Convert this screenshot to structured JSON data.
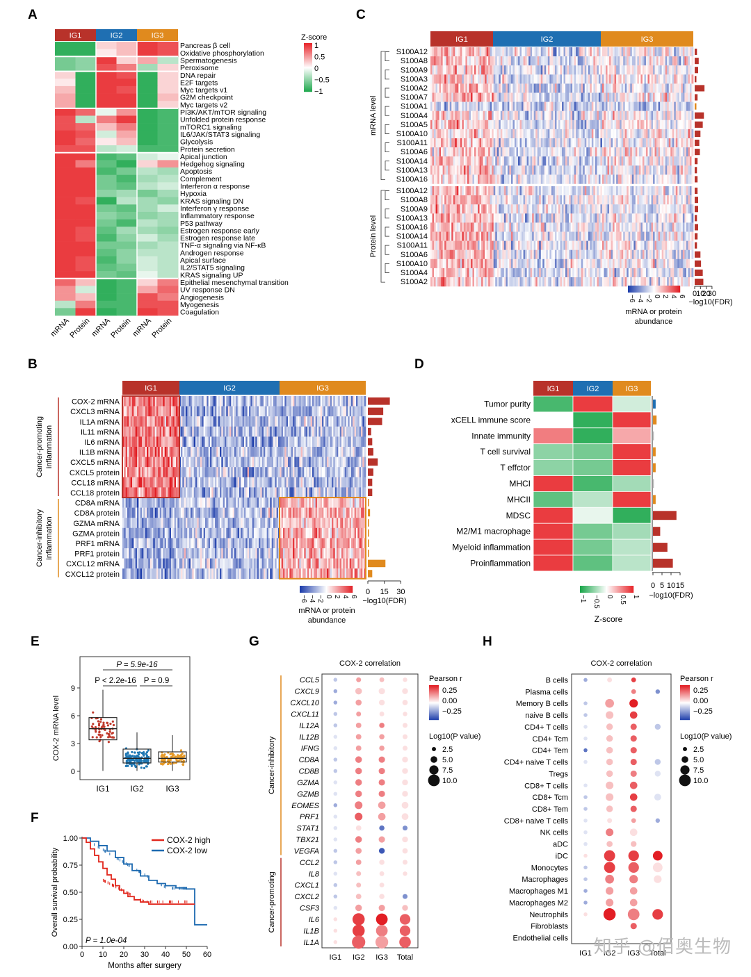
{
  "panels": {
    "a": "A",
    "b": "B",
    "c": "C",
    "d": "D",
    "e": "E",
    "f": "F",
    "g": "G",
    "h": "H"
  },
  "groups": [
    "IG1",
    "IG2",
    "IG3"
  ],
  "colors": {
    "ig1": "#b8322a",
    "ig2": "#1f6fb2",
    "ig3": "#e08a1e",
    "red": "#e8262b",
    "green": "#1aa64a",
    "blue": "#1f4fb4",
    "bar": "#b8322a",
    "cox_high": "#e1261c",
    "cox_low": "#1d6ab0"
  },
  "panelA": {
    "legend_title": "Z-score",
    "legend_ticks": [
      "1",
      "0.5",
      "0",
      "−0.5",
      "−1"
    ],
    "col_labels": [
      "mRNA",
      "Protein",
      "mRNA",
      "Protein",
      "mRNA",
      "Protein"
    ],
    "rows": [
      "Pancreas β cell",
      "Oxidative phosphorylation",
      "Spermatogenesis",
      "Peroxisome",
      "DNA repair",
      "E2F targets",
      "Myc targets v1",
      "G2M checkpoint",
      "Myc targets v2",
      "PI3K/AKT/mTOR signaling",
      "Unfolded protein response",
      "mTORC1 signaling",
      "IL6/JAK/STAT3 signaling",
      "Glycolysis",
      "Protein secretion",
      "Apical junction",
      "Hedgehog signaling",
      "Apoptosis",
      "Complement",
      "Interferon α response",
      "Hypoxia",
      "KRAS signaling DN",
      "Interferon γ response",
      "Inflammatory response",
      "P53 pathway",
      "Estrogen response early",
      "Estrogen response late",
      "TNF-α signaling via NF-κB",
      "Androgen response",
      "Apical surface",
      "IL2/STAT5 signaling",
      "KRAS signaling UP",
      "Epithelial mesenchymal transition",
      "UV response DN",
      "Angiogenesis",
      "Myogenesis",
      "Coagulation"
    ]
  },
  "panelB": {
    "side_labels": [
      "Cancer-promoting inflammation",
      "Cancer-inhibitory inflammation"
    ],
    "rows": [
      "COX-2 mRNA",
      "CXCL3 mRNA",
      "IL1A mRNA",
      "IL11 mRNA",
      "IL6 mRNA",
      "IL1B mRNA",
      "CXCL5 mRNA",
      "CXCL5 protein",
      "CCL18 mRNA",
      "CCL18 protein",
      "CD8A mRNA",
      "CD8A protein",
      "GZMA mRNA",
      "GZMA protein",
      "PRF1 mRNA",
      "PRF1 protein",
      "CXCL12 mRNA",
      "CXCL12 protein"
    ],
    "bar_values": [
      20,
      14,
      13,
      3,
      4,
      5,
      9,
      5,
      4,
      4,
      1,
      2,
      1,
      1,
      1,
      1,
      16,
      4
    ],
    "axis_ticks": [
      "0",
      "15",
      "30"
    ],
    "axis_label": "−log10(FDR)",
    "legend_ticks": [
      "−6",
      "−4",
      "−2",
      "0",
      "2",
      "4",
      "6"
    ],
    "legend_title_1": "mRNA or protein",
    "legend_title_2": "abundance"
  },
  "panelC": {
    "side_labels": [
      "mRNA level",
      "Protein level"
    ],
    "rows_mrna": [
      "S100A12",
      "S100A8",
      "S100A9",
      "S100A3",
      "S100A2",
      "S100A7",
      "S100A1",
      "S100A4",
      "S100A5",
      "S100A10",
      "S100A11",
      "S100A6",
      "S100A14",
      "S100A13",
      "S100A16"
    ],
    "rows_protein": [
      "S100A12",
      "S100A8",
      "S100A9",
      "S100A13",
      "S100A16",
      "S100A14",
      "S100A11",
      "S100A6",
      "S100A10",
      "S100A4",
      "S100A2"
    ],
    "bars_mrna": [
      4,
      7,
      6,
      3,
      17,
      5,
      3,
      16,
      14,
      10,
      8,
      9,
      5,
      4,
      5
    ],
    "bars_protein": [
      5,
      6,
      6,
      4,
      6,
      5,
      4,
      10,
      11,
      14,
      15
    ],
    "axis_ticks": [
      "0",
      "10",
      "20",
      "30"
    ],
    "axis_label": "−log10(FDR)",
    "legend_ticks": [
      "−6",
      "−4",
      "−2",
      "0",
      "2",
      "4",
      "6"
    ],
    "legend_title_1": "mRNA or protein",
    "legend_title_2": "abundance"
  },
  "panelD": {
    "rows": [
      "Tumor purity",
      "xCELL immune score",
      "Innate immunity",
      "T cell survival",
      "T effctor",
      "MHCI",
      "MHCII",
      "MDSC",
      "M2/M1 macrophage",
      "Myeloid inflammation",
      "Proinflammation"
    ],
    "z": [
      [
        -0.8,
        0.9,
        -0.2
      ],
      [
        0.0,
        -0.9,
        0.9
      ],
      [
        0.6,
        -0.9,
        0.4
      ],
      [
        -0.5,
        -0.6,
        0.9
      ],
      [
        -0.5,
        -0.6,
        0.9
      ],
      [
        0.9,
        -0.8,
        -0.4
      ],
      [
        -0.7,
        -0.3,
        0.9
      ],
      [
        0.9,
        -0.1,
        -0.9
      ],
      [
        0.9,
        -0.6,
        -0.4
      ],
      [
        0.9,
        -0.6,
        -0.3
      ],
      [
        0.9,
        -0.7,
        -0.3
      ]
    ],
    "bar_values": [
      1.5,
      2,
      0.5,
      1.5,
      1.5,
      0.5,
      1.5,
      13,
      4,
      8,
      11
    ],
    "bar_colors": [
      "#1f6fb2",
      "#e08a1e",
      "#bbbbbb",
      "#e08a1e",
      "#e08a1e",
      "#bbbbbb",
      "#e08a1e",
      "#b8322a",
      "#b8322a",
      "#b8322a",
      "#b8322a"
    ],
    "axis_ticks": [
      "0",
      "5",
      "10",
      "15"
    ],
    "axis_label": "−log10(FDR)",
    "legend_ticks": [
      "−1",
      "−0.5",
      "0",
      "0.5",
      "1"
    ],
    "legend_title": "Z-score"
  },
  "panelE": {
    "ylabel": "COX-2 mRNA level",
    "yticks": [
      "0",
      "3",
      "6",
      "9"
    ],
    "groups": [
      "IG1",
      "IG2",
      "IG3"
    ],
    "p_top": "P = 5.9e-16",
    "p_left": "P < 2.2e-16",
    "p_right": "P = 0.9",
    "medians": [
      4.6,
      1.4,
      1.4
    ],
    "q1": [
      3.4,
      0.9,
      1.0
    ],
    "q3": [
      5.8,
      2.4,
      2.1
    ]
  },
  "panelF": {
    "ylabel": "Overall survival probability",
    "xlabel": "Months after surgery",
    "yticks": [
      "0.00",
      "0.25",
      "0.50",
      "0.75",
      "1.00"
    ],
    "xticks": [
      "0",
      "10",
      "20",
      "30",
      "40",
      "50",
      "60"
    ],
    "legend": [
      "COX-2 high",
      "COX-2 low"
    ],
    "pvalue": "P = 1.0e-04"
  },
  "panelG": {
    "title": "COX-2 correlation",
    "cols": [
      "IG1",
      "IG2",
      "IG3",
      "Total"
    ],
    "side_labels": [
      "Cancer-inhibitory",
      "Cancer-promoting"
    ],
    "rows": [
      "CCL5",
      "CXCL9",
      "CXCL10",
      "CXCL11",
      "IL12A",
      "IL12B",
      "IFNG",
      "CD8A",
      "CD8B",
      "GZMA",
      "GZMB",
      "EOMES",
      "PRF1",
      "STAT1",
      "TBX21",
      "VEGFA",
      "CCL2",
      "IL8",
      "CXCL1",
      "CXCL2",
      "CSF3",
      "IL6",
      "IL1B",
      "IL1A"
    ],
    "r": [
      [
        -0.1,
        0.15,
        0.1,
        0.05
      ],
      [
        -0.15,
        0.1,
        0.05,
        0.05
      ],
      [
        -0.15,
        0.15,
        0.05,
        0.05
      ],
      [
        -0.1,
        0.15,
        0.05,
        0.05
      ],
      [
        -0.1,
        0.15,
        0.2,
        0.05
      ],
      [
        -0.05,
        0.15,
        0.15,
        0.05
      ],
      [
        -0.05,
        0.15,
        0.15,
        0.05
      ],
      [
        -0.1,
        0.2,
        0.2,
        0.05
      ],
      [
        -0.1,
        0.2,
        0.2,
        0.05
      ],
      [
        -0.05,
        0.2,
        0.2,
        0.05
      ],
      [
        -0.05,
        0.2,
        0.2,
        0.05
      ],
      [
        -0.15,
        0.2,
        0.15,
        0.05
      ],
      [
        -0.05,
        0.25,
        0.15,
        0.05
      ],
      [
        -0.05,
        0.05,
        -0.25,
        -0.2
      ],
      [
        -0.05,
        0.2,
        0.15,
        0.05
      ],
      [
        -0.1,
        0.15,
        -0.3,
        0.05
      ],
      [
        -0.1,
        0.15,
        0.05,
        0.05
      ],
      [
        -0.05,
        0.1,
        0.05,
        0.05
      ],
      [
        -0.1,
        0.1,
        0.05,
        0.0
      ],
      [
        -0.1,
        0.1,
        0.05,
        -0.2
      ],
      [
        -0.05,
        0.15,
        0.15,
        0.1
      ],
      [
        0.05,
        0.3,
        0.35,
        0.25
      ],
      [
        0.05,
        0.3,
        0.2,
        0.25
      ],
      [
        0.05,
        0.25,
        0.15,
        0.25
      ]
    ],
    "logp": [
      2.5,
      4,
      3.5,
      2.5,
      3,
      3,
      3,
      4,
      4,
      4,
      4,
      5,
      5,
      3,
      4,
      3.5,
      3,
      2.5,
      2.5,
      3,
      4,
      9,
      9,
      10
    ],
    "legend_r_title": "Pearson r",
    "legend_r_ticks": [
      "0.25",
      "0.00",
      "−0.25"
    ],
    "legend_p_title": "Log10(P value)",
    "legend_p_ticks": [
      "2.5",
      "5.0",
      "7.5",
      "10.0"
    ]
  },
  "panelH": {
    "title": "COX-2 correlation",
    "cols": [
      "IG1",
      "IG2",
      "IG3",
      "Total"
    ],
    "rows": [
      "B cells",
      "Plasma cells",
      "Memory B cells",
      "naive B cells",
      "CD4+ T cells",
      "CD4+ Tcm",
      "CD4+ Tem",
      "CD4+ naive T cells",
      "Tregs",
      "CD8+ T cells",
      "CD8+ Tcm",
      "CD8+ Tem",
      "CD8+ naive T cells",
      "NK cells",
      "aDC",
      "iDC",
      "Monocytes",
      "Macrophages",
      "Macrophages M1",
      "Macrophages M2",
      "Neutrophils",
      "Fibroblasts",
      "Endothelial cells"
    ],
    "r": [
      [
        -0.15,
        0.05,
        0.3,
        0.0
      ],
      [
        0.0,
        0.0,
        0.2,
        -0.2
      ],
      [
        -0.1,
        0.15,
        0.35,
        0.0
      ],
      [
        -0.1,
        0.1,
        0.3,
        0.0
      ],
      [
        -0.05,
        0.1,
        0.25,
        -0.1
      ],
      [
        -0.05,
        0.1,
        0.25,
        0.0
      ],
      [
        -0.25,
        0.1,
        0.25,
        0.0
      ],
      [
        -0.05,
        0.1,
        0.25,
        -0.1
      ],
      [
        0.0,
        0.1,
        0.2,
        -0.05
      ],
      [
        -0.05,
        0.1,
        0.25,
        0.0
      ],
      [
        -0.1,
        0.1,
        0.3,
        -0.05
      ],
      [
        -0.1,
        0.1,
        0.25,
        0.0
      ],
      [
        -0.05,
        0.05,
        0.15,
        -0.15
      ],
      [
        -0.05,
        0.2,
        0.05,
        0.0
      ],
      [
        -0.05,
        0.1,
        0.1,
        0.0
      ],
      [
        0.05,
        0.3,
        0.3,
        0.35
      ],
      [
        -0.1,
        0.3,
        0.25,
        0.05
      ],
      [
        -0.1,
        0.2,
        0.2,
        0.05
      ],
      [
        -0.15,
        0.15,
        0.15,
        0.0
      ],
      [
        -0.15,
        0.15,
        0.15,
        0.0
      ],
      [
        0.05,
        0.35,
        0.2,
        0.3
      ],
      [
        0.0,
        0.0,
        0.25,
        0.0
      ],
      [
        0.0,
        0.0,
        0.0,
        0.0
      ]
    ],
    "logp": [
      2.5,
      2.5,
      6,
      5,
      4,
      4,
      4,
      4,
      4,
      5,
      5,
      4,
      2.5,
      5,
      3.5,
      8,
      8,
      6,
      5,
      5,
      9,
      4,
      1.5
    ],
    "legend_r_title": "Pearson r",
    "legend_r_ticks": [
      "0.25",
      "0.00",
      "−0.25"
    ],
    "legend_p_title": "Log10(P value)",
    "legend_p_ticks": [
      "2.5",
      "5.0",
      "7.5",
      "10.0"
    ]
  },
  "watermark": "知乎 @佰奥生物"
}
